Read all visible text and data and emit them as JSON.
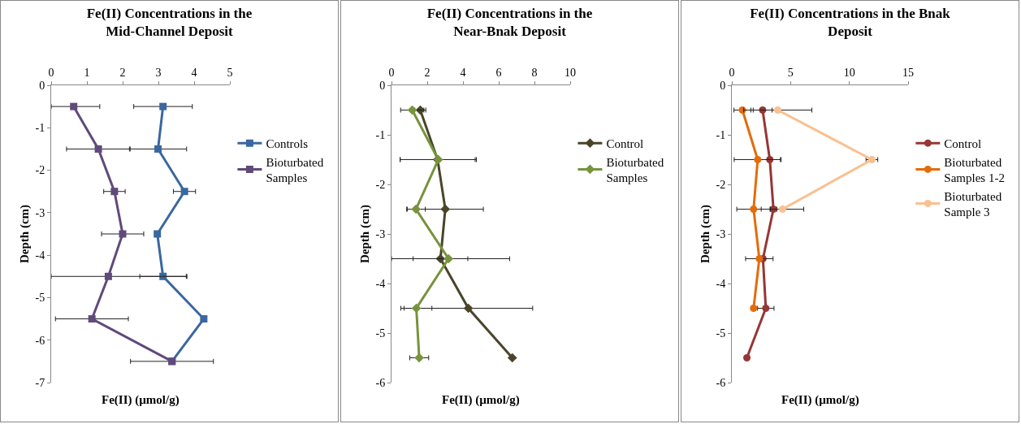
{
  "chart_data": [
    {
      "type": "line",
      "title": "Fe(II) Concentrations in the Mid-Channel Deposit",
      "xlabel": "Fe(II) (µmol/g)",
      "ylabel": "Depth (cm)",
      "xlim": [
        0,
        5
      ],
      "xticks": [
        0,
        1,
        2,
        3,
        4,
        5
      ],
      "ylim": [
        -7,
        0
      ],
      "yticks": [
        -7,
        -6,
        -5,
        -4,
        -3,
        -2,
        -1,
        0
      ],
      "grid": false,
      "legend": "right",
      "marker": "square",
      "line_style": "solid",
      "series": [
        {
          "name": "Controls",
          "color": "#3a67a0",
          "x": [
            3.13,
            2.99,
            3.73,
            2.97,
            3.13,
            4.27,
            3.38
          ],
          "values": [
            -0.5,
            -1.5,
            -2.5,
            -3.5,
            -4.5,
            -5.5,
            -6.5
          ],
          "xerrors": [
            0.82,
            0.8,
            0.31,
            null,
            0.65,
            null,
            1.16
          ]
        },
        {
          "name": "Bioturbated Samples",
          "color": "#604a7b",
          "x": [
            0.63,
            1.32,
            1.77,
            2.0,
            1.6,
            1.14,
            3.38
          ],
          "values": [
            -0.5,
            -1.5,
            -2.5,
            -3.5,
            -4.5,
            -5.5,
            -6.5
          ],
          "xerrors": [
            [
              0,
              1.36
            ],
            0.89,
            0.3,
            0.59,
            [
              0,
              3.8
            ],
            1.02,
            null
          ]
        }
      ]
    },
    {
      "type": "line",
      "title": "Fe(II) Concentrations in the Near-Bnak Deposit",
      "xlabel": "Fe(II) (µmol/g)",
      "ylabel": "Depth (cm)",
      "xlim": [
        0,
        10
      ],
      "xticks": [
        0,
        2,
        4,
        6,
        8,
        10
      ],
      "ylim": [
        -6,
        0
      ],
      "yticks": [
        -6,
        -5,
        -4,
        -3,
        -2,
        -1,
        0
      ],
      "grid": false,
      "legend": "right",
      "marker": "diamond",
      "line_style": "solid",
      "series": [
        {
          "name": "Control",
          "color": "#4a452a",
          "x": [
            1.61,
            2.58,
            3.01,
            2.74,
            4.3,
            6.76
          ],
          "values": [
            -0.5,
            -1.5,
            -2.5,
            -3.5,
            -4.5,
            -5.5
          ],
          "xerrors": [
            0.31,
            2.1,
            2.13,
            1.53,
            3.6,
            null
          ]
        },
        {
          "name": "Bioturbated Samples",
          "color": "#77933c",
          "x": [
            1.16,
            2.62,
            1.37,
            3.19,
            1.39,
            1.55
          ],
          "values": [
            -0.5,
            -1.5,
            -2.5,
            -3.5,
            -4.5,
            -5.5
          ],
          "xerrors": [
            0.65,
            2.13,
            0.52,
            [
              0,
              6.61
            ],
            0.87,
            0.53
          ]
        }
      ]
    },
    {
      "type": "line",
      "title": "Fe(II) Concentrations in the Bnak Deposit",
      "xlabel": "Fe(II) (µmol/g)",
      "ylabel": "Depth (cm)",
      "xlim": [
        0,
        15
      ],
      "xticks": [
        0,
        5,
        10,
        15
      ],
      "ylim": [
        -6,
        0
      ],
      "yticks": [
        -6,
        -5,
        -4,
        -3,
        -2,
        -1,
        0
      ],
      "grid": false,
      "legend": "right",
      "marker": "circle",
      "line_style": "solid",
      "series": [
        {
          "name": "Control",
          "color": "#953735",
          "x": [
            2.62,
            3.23,
            3.54,
            2.65,
            2.89,
            1.28
          ],
          "values": [
            -0.5,
            -1.5,
            -2.5,
            -3.5,
            -4.5,
            -5.5
          ],
          "xerrors": [
            0.8,
            0.9,
            0.29,
            null,
            0.7,
            null
          ]
        },
        {
          "name": "Bioturbated Samples 1-2",
          "color": "#e46c0a",
          "x": [
            0.9,
            2.2,
            1.85,
            2.34,
            1.85
          ],
          "values": [
            -0.5,
            -1.5,
            -2.5,
            -3.5,
            -4.5
          ],
          "xerrors": [
            0.72,
            2.0,
            1.43,
            1.17,
            null
          ]
        },
        {
          "name": "Bioturbated Sample 3",
          "color": "#fac090",
          "x": [
            3.91,
            11.92,
            4.31
          ],
          "values": [
            -0.5,
            -1.5,
            -2.5
          ],
          "xerrors": [
            2.9,
            0.5,
            1.81
          ]
        }
      ]
    }
  ]
}
